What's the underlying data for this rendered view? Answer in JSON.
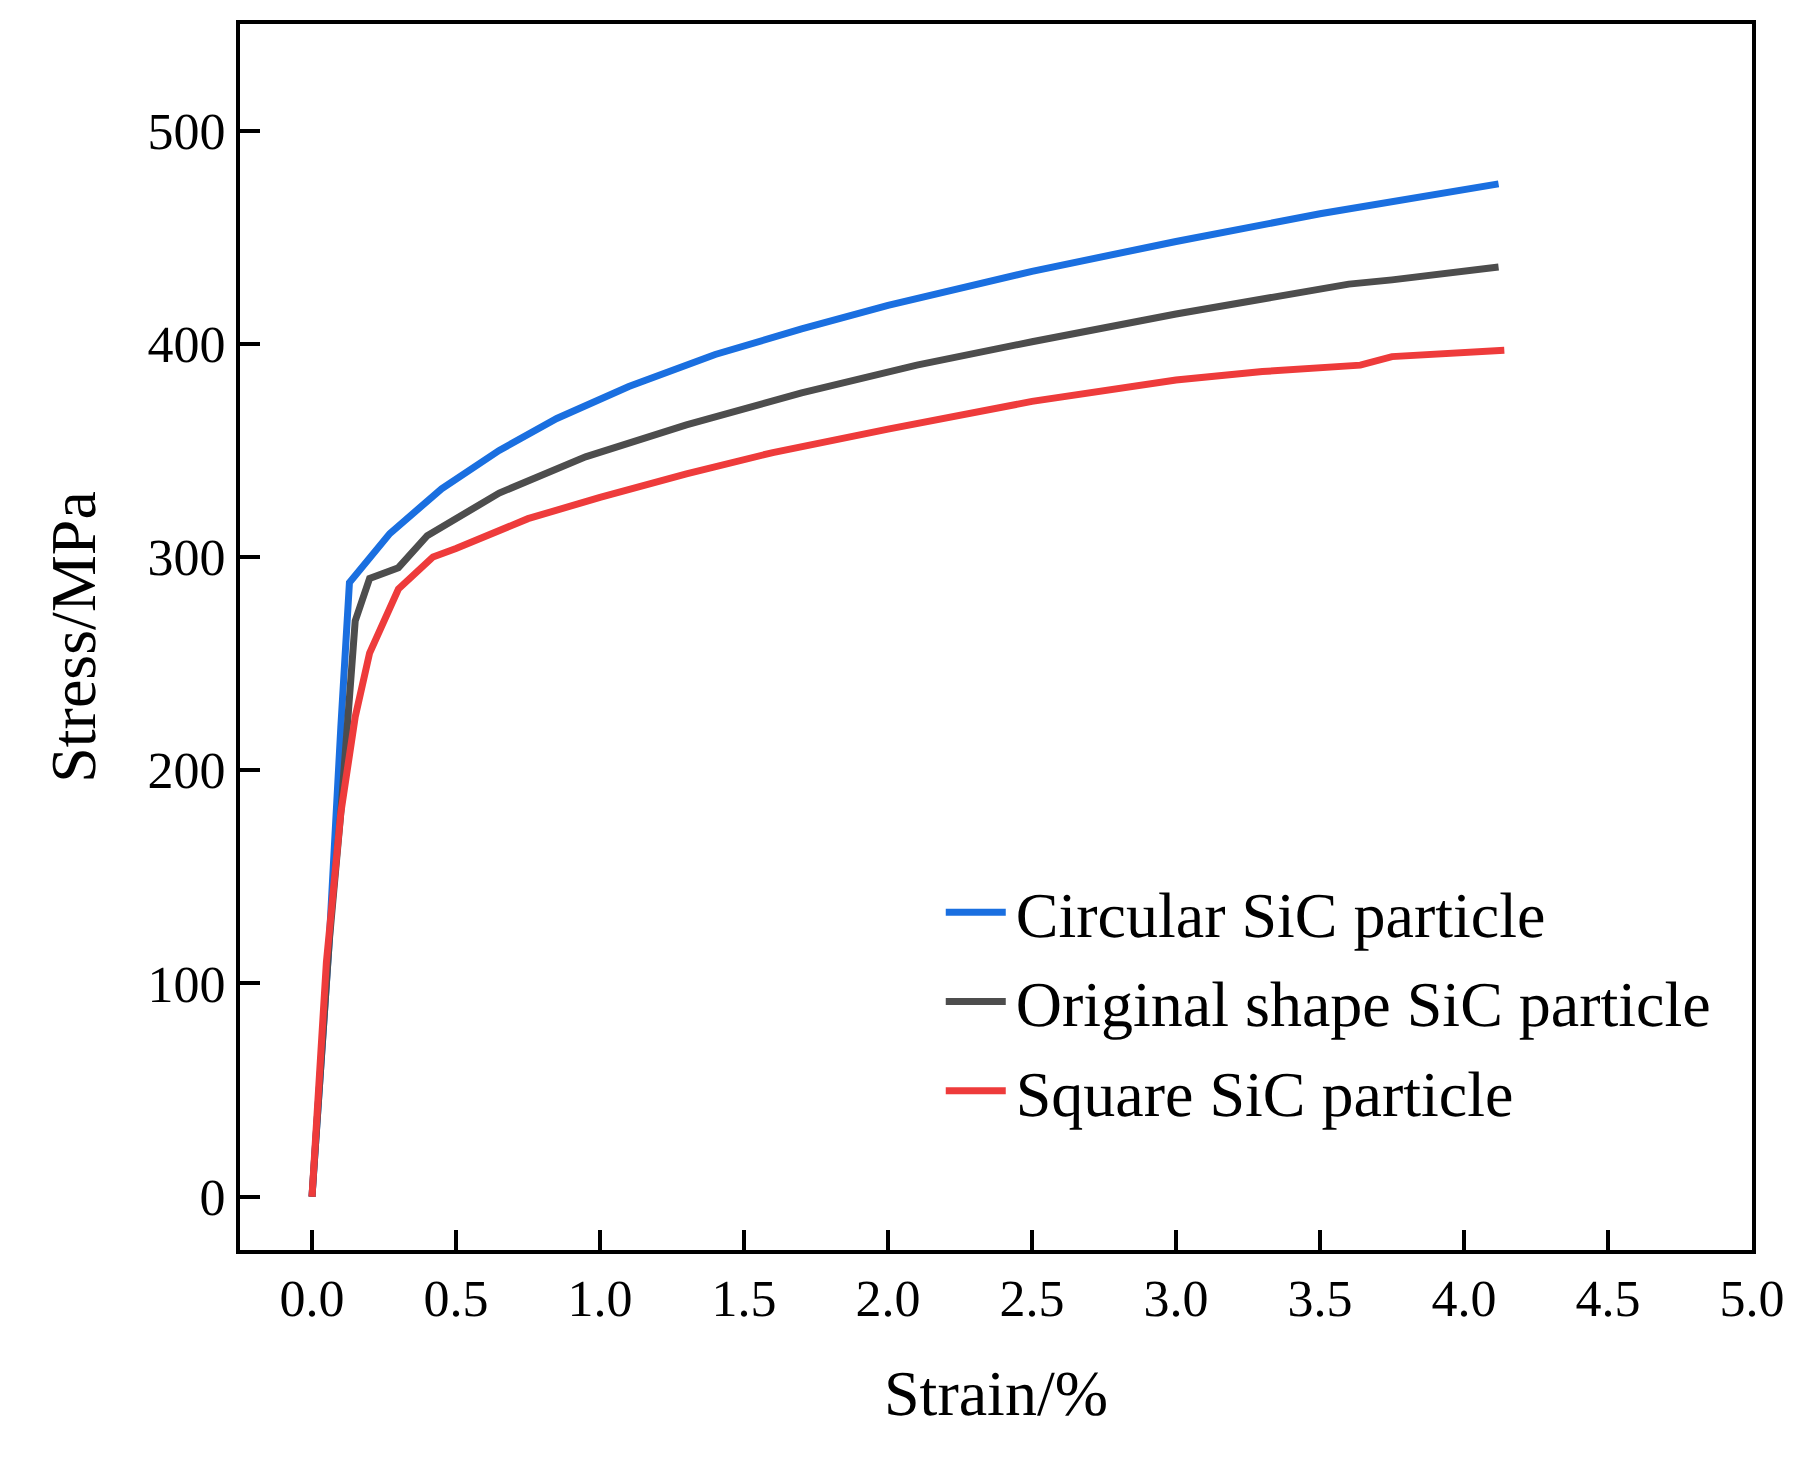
{
  "chart_data": {
    "type": "line",
    "xlabel": "Strain/%",
    "ylabel": "Stress/MPa",
    "xlim": [
      -0.25,
      5.0
    ],
    "ylim": [
      -25,
      550
    ],
    "xticks": [
      {
        "value": 0,
        "label": "0.0"
      },
      {
        "value": 0.5,
        "label": "0.5"
      },
      {
        "value": 1,
        "label": "1.0"
      },
      {
        "value": 1.5,
        "label": "1.5"
      },
      {
        "value": 2,
        "label": "2.0"
      },
      {
        "value": 2.5,
        "label": "2.5"
      },
      {
        "value": 3,
        "label": "3.0"
      },
      {
        "value": 3.5,
        "label": "3.5"
      },
      {
        "value": 4,
        "label": "4.0"
      },
      {
        "value": 4.5,
        "label": "4.5"
      },
      {
        "value": 5,
        "label": "5.0"
      }
    ],
    "yticks": [
      0,
      100,
      200,
      300,
      400,
      500
    ],
    "grid": false,
    "legend": "bottom right",
    "marker": "none",
    "line_style": "solid",
    "series": [
      {
        "name": "Circular SiC particle",
        "color": "#1a6fe0",
        "x": [
          0,
          0.06,
          0.1,
          0.13,
          0.27,
          0.45,
          0.65,
          0.85,
          1.1,
          1.4,
          1.7,
          2.0,
          2.5,
          3.0,
          3.5,
          4.12
        ],
        "values": [
          0,
          120,
          220,
          288,
          311,
          332,
          350,
          365,
          380,
          395,
          407,
          418,
          434,
          448,
          461,
          475
        ]
      },
      {
        "name": "Original shape SiC particle",
        "color": "#4d4d4d",
        "x": [
          0,
          0.06,
          0.1,
          0.15,
          0.2,
          0.3,
          0.4,
          0.65,
          0.95,
          1.3,
          1.7,
          2.1,
          2.5,
          3.0,
          3.6,
          3.75,
          4.12
        ],
        "values": [
          0,
          120,
          180,
          270,
          290,
          295,
          310,
          330,
          347,
          362,
          377,
          390,
          401,
          414,
          428,
          430,
          436
        ]
      },
      {
        "name": "Square SiC particle",
        "color": "#ee3b3b",
        "x": [
          0,
          0.05,
          0.1,
          0.15,
          0.2,
          0.3,
          0.42,
          0.5,
          0.75,
          1.0,
          1.3,
          1.6,
          2.0,
          2.5,
          3.0,
          3.3,
          3.64,
          3.75,
          4.14
        ],
        "values": [
          0,
          110,
          180,
          225,
          255,
          285,
          300,
          304,
          318,
          328,
          339,
          349,
          360,
          373,
          383,
          387,
          390,
          394,
          397
        ]
      }
    ]
  }
}
